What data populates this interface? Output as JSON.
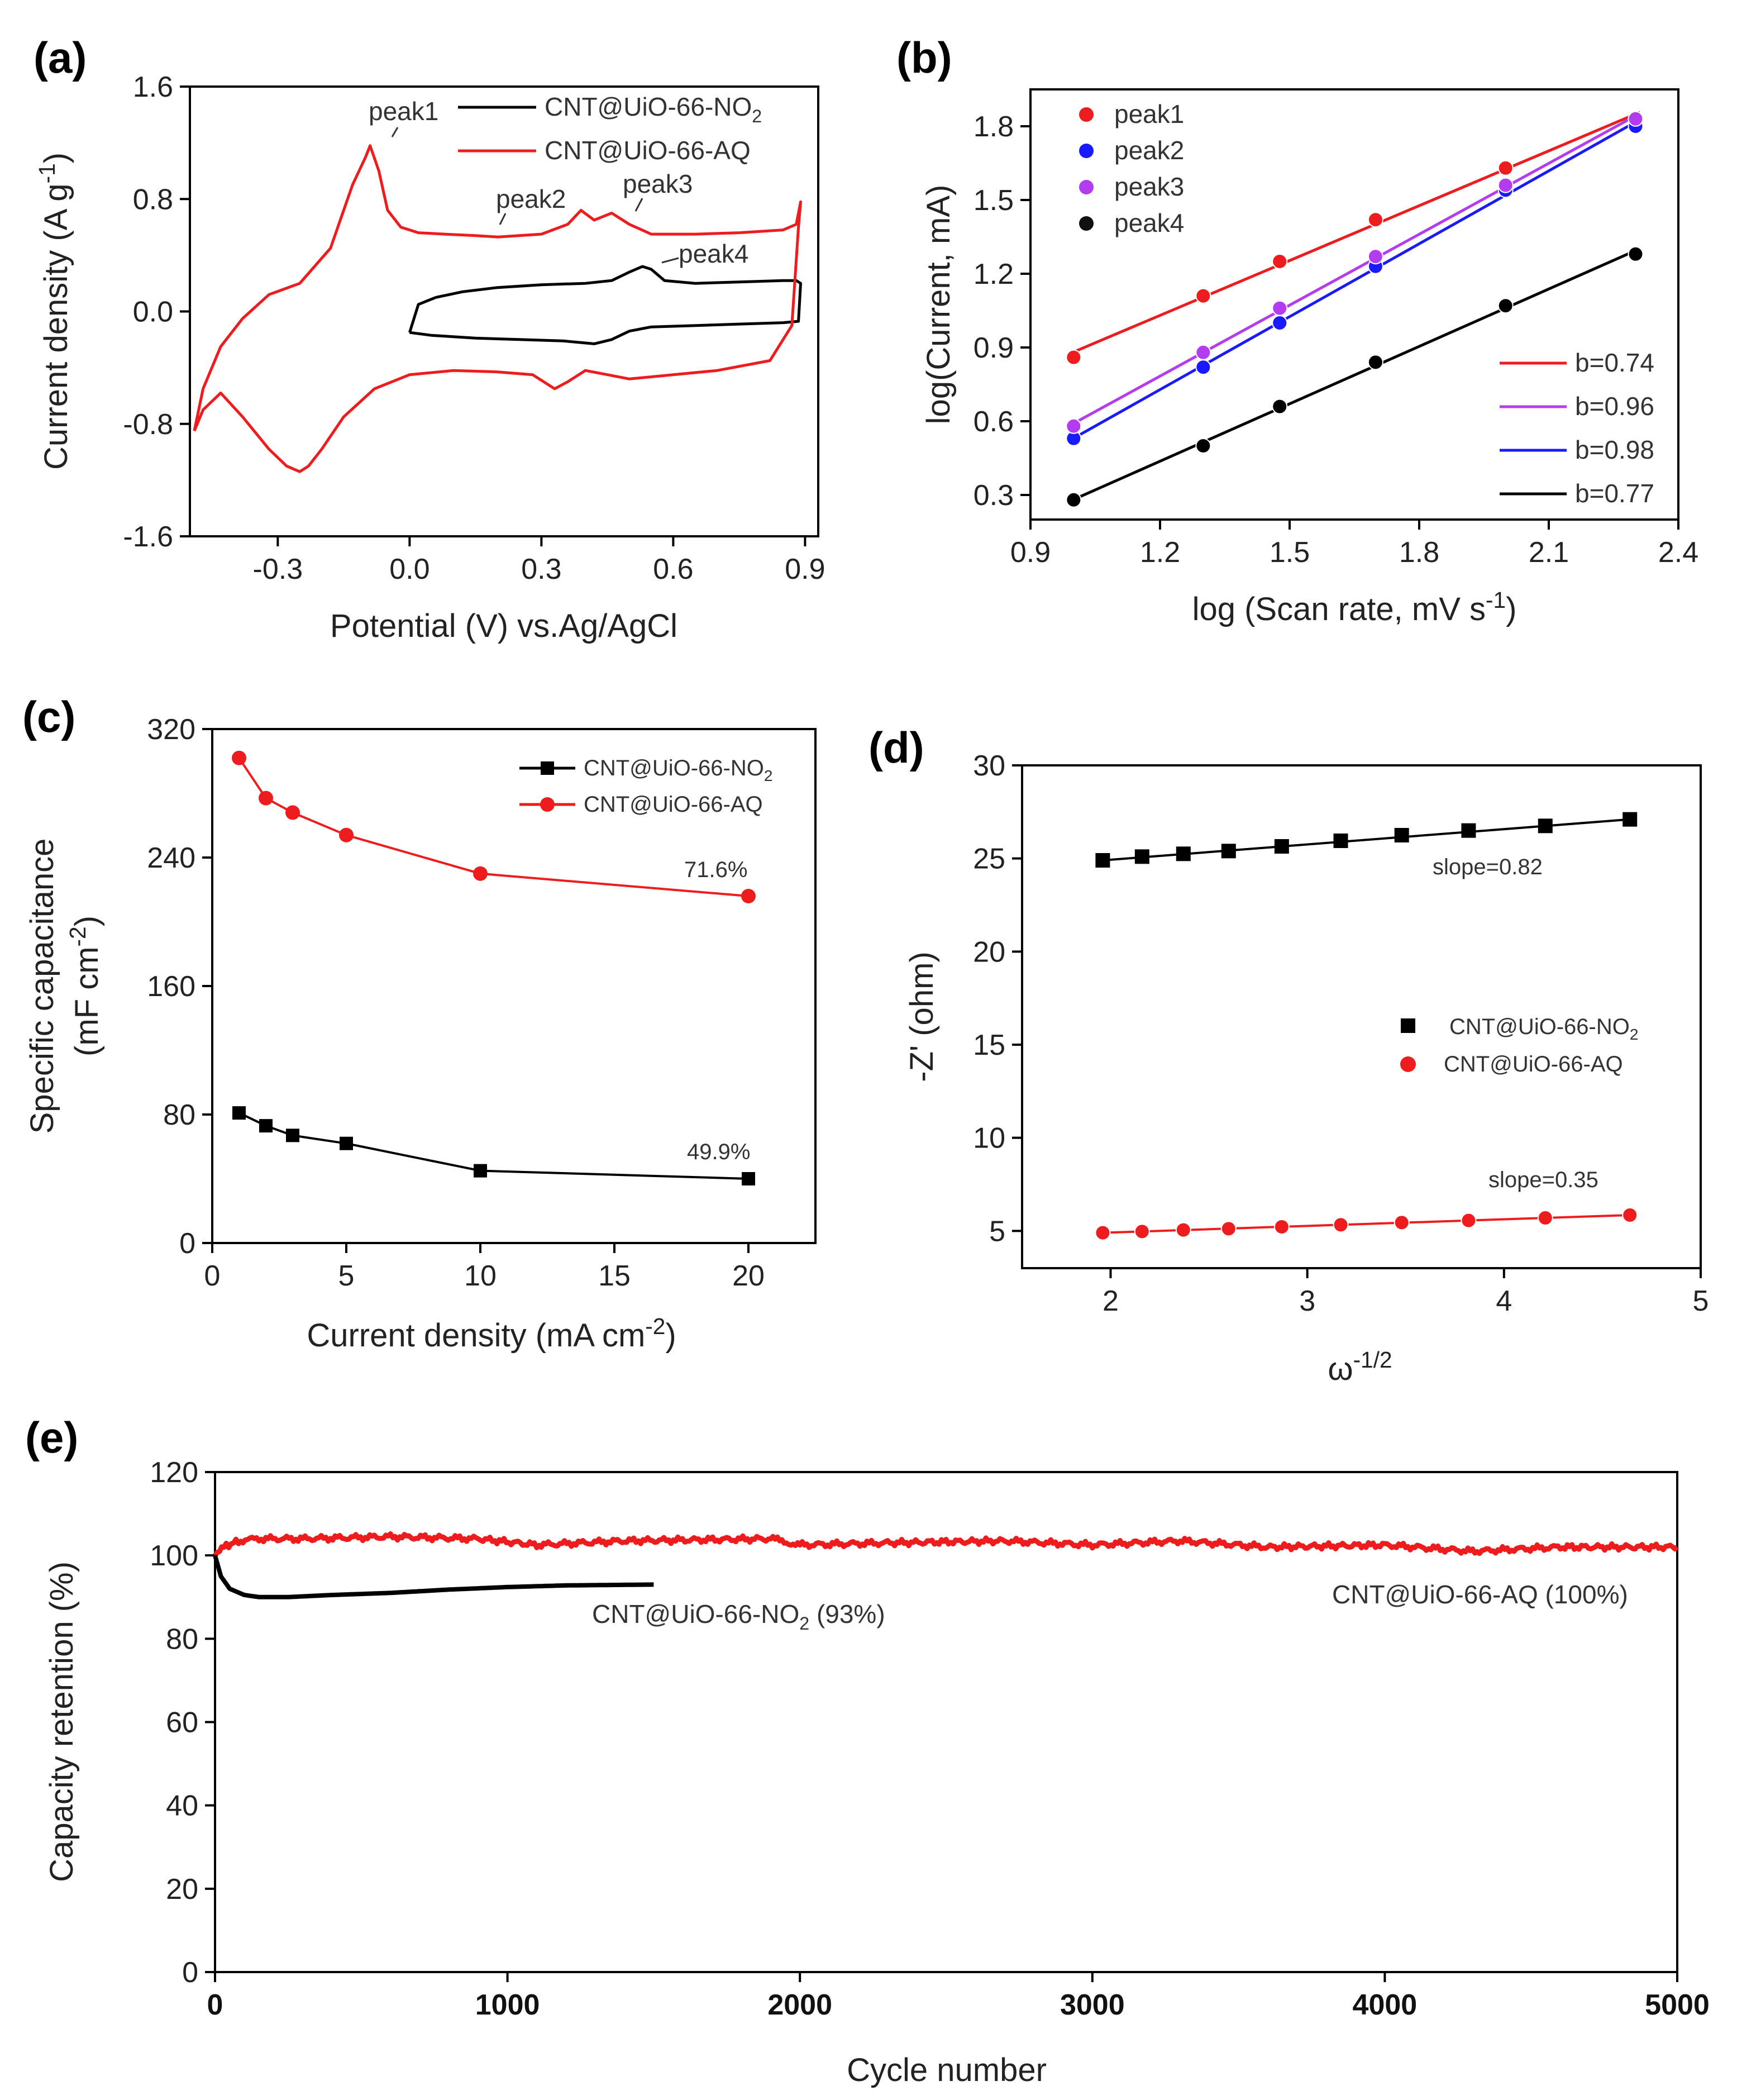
{
  "panel_labels": {
    "a": "(a)",
    "b": "(b)",
    "c": "(c)",
    "d": "(d)",
    "e": "(e)"
  },
  "chart_data": [
    {
      "id": "a",
      "type": "line",
      "title": "",
      "xlabel": "Potential (V) vs.Ag/AgCl",
      "ylabel": {
        "main": "Current density (A g",
        "sup": "-1",
        "end": ")"
      },
      "xlim": [
        -0.5,
        0.93
      ],
      "ylim": [
        -1.6,
        1.6
      ],
      "xticks": [
        -0.3,
        0.0,
        0.3,
        0.6,
        0.9
      ],
      "xtick_labels": [
        "-0.3",
        "0.0",
        "0.3",
        "0.6",
        "0.9"
      ],
      "yticks": [
        -1.6,
        -0.8,
        0.0,
        0.8,
        1.6
      ],
      "ytick_labels": [
        "-1.6",
        "-0.8",
        "0.0",
        "0.8",
        "1.6"
      ],
      "legend": [
        {
          "main": "CNT@UiO-66-NO",
          "sub": "2",
          "color": "#000000"
        },
        {
          "main": "CNT@UiO-66-AQ",
          "sub": "",
          "color": "#ee1c1c"
        }
      ],
      "series": [
        {
          "name": "CNT@UiO-66-NO2",
          "color": "#000000",
          "x": [
            0.0,
            0.02,
            0.06,
            0.12,
            0.2,
            0.3,
            0.4,
            0.46,
            0.5,
            0.53,
            0.55,
            0.58,
            0.65,
            0.75,
            0.85,
            0.88,
            0.89,
            0.885,
            0.85,
            0.75,
            0.65,
            0.55,
            0.5,
            0.46,
            0.42,
            0.35,
            0.25,
            0.15,
            0.05,
            0.0
          ],
          "y": [
            -0.15,
            0.05,
            0.1,
            0.14,
            0.17,
            0.19,
            0.2,
            0.22,
            0.28,
            0.32,
            0.3,
            0.22,
            0.2,
            0.21,
            0.22,
            0.22,
            0.2,
            -0.07,
            -0.08,
            -0.09,
            -0.1,
            -0.11,
            -0.14,
            -0.2,
            -0.23,
            -0.21,
            -0.2,
            -0.19,
            -0.17,
            -0.15
          ]
        },
        {
          "name": "CNT@UiO-66-AQ",
          "color": "#ee1c1c",
          "x": [
            -0.49,
            -0.47,
            -0.43,
            -0.38,
            -0.32,
            -0.25,
            -0.18,
            -0.13,
            -0.1,
            -0.09,
            -0.07,
            -0.05,
            -0.02,
            0.02,
            0.08,
            0.15,
            0.2,
            0.3,
            0.36,
            0.39,
            0.42,
            0.46,
            0.5,
            0.55,
            0.65,
            0.75,
            0.85,
            0.88,
            0.89,
            0.885,
            0.87,
            0.82,
            0.7,
            0.6,
            0.5,
            0.45,
            0.4,
            0.36,
            0.33,
            0.28,
            0.2,
            0.1,
            0.0,
            -0.08,
            -0.15,
            -0.2,
            -0.23,
            -0.25,
            -0.28,
            -0.32,
            -0.38,
            -0.43,
            -0.47,
            -0.49
          ],
          "y": [
            -0.85,
            -0.55,
            -0.25,
            -0.05,
            0.12,
            0.2,
            0.45,
            0.9,
            1.1,
            1.18,
            1.0,
            0.72,
            0.6,
            0.56,
            0.55,
            0.54,
            0.53,
            0.55,
            0.62,
            0.72,
            0.65,
            0.7,
            0.62,
            0.55,
            0.55,
            0.56,
            0.58,
            0.62,
            0.78,
            0.6,
            -0.1,
            -0.35,
            -0.42,
            -0.45,
            -0.48,
            -0.45,
            -0.42,
            -0.5,
            -0.55,
            -0.45,
            -0.43,
            -0.42,
            -0.45,
            -0.55,
            -0.75,
            -0.98,
            -1.1,
            -1.14,
            -1.1,
            -0.98,
            -0.75,
            -0.58,
            -0.7,
            -0.85
          ]
        }
      ],
      "annotations": [
        "peak1",
        "peak2",
        "peak3",
        "peak4"
      ]
    },
    {
      "id": "b",
      "type": "scatter",
      "xlabel": {
        "main": "log (Scan rate, mV s",
        "sup": "-1",
        "end": ")"
      },
      "ylabel": "log(Current, mA)",
      "xlim": [
        0.9,
        2.4
      ],
      "ylim": [
        0.2,
        1.95
      ],
      "xticks": [
        0.9,
        1.2,
        1.5,
        1.8,
        2.1,
        2.4
      ],
      "xtick_labels": [
        "0.9",
        "1.2",
        "1.5",
        "1.8",
        "2.1",
        "2.4"
      ],
      "yticks": [
        0.3,
        0.6,
        0.9,
        1.2,
        1.5,
        1.8
      ],
      "ytick_labels": [
        "0.3",
        "0.6",
        "0.9",
        "1.2",
        "1.5",
        "1.8"
      ],
      "x": [
        1.0,
        1.3,
        1.477,
        1.699,
        2.0,
        2.301
      ],
      "series": [
        {
          "name": "peak1",
          "color": "#ee1c1c",
          "values": [
            0.86,
            1.11,
            1.25,
            1.42,
            1.63,
            1.83
          ],
          "fit_label": "b=0.74"
        },
        {
          "name": "peak2",
          "color": "#1a1aff",
          "values": [
            0.53,
            0.82,
            1.0,
            1.23,
            1.54,
            1.8
          ],
          "fit_label": "b=0.98"
        },
        {
          "name": "peak3",
          "color": "#b43cf0",
          "values": [
            0.58,
            0.88,
            1.06,
            1.27,
            1.56,
            1.83
          ],
          "fit_label": "b=0.96"
        },
        {
          "name": "peak4",
          "color": "#000000",
          "values": [
            0.28,
            0.5,
            0.66,
            0.84,
            1.07,
            1.28
          ],
          "fit_label": "b=0.77"
        }
      ],
      "fit_legend": [
        {
          "label": "b=0.74",
          "color": "#ee1c1c"
        },
        {
          "label": "b=0.96",
          "color": "#b43cf0"
        },
        {
          "label": "b=0.98",
          "color": "#1a1aff"
        },
        {
          "label": "b=0.77",
          "color": "#000000"
        }
      ]
    },
    {
      "id": "c",
      "type": "line",
      "xlabel": {
        "main": "Current density (mA cm",
        "sup": "-2",
        "end": ")"
      },
      "ylabel": {
        "line1": "Specific capacitance",
        "line2_main": "(mF cm",
        "line2_sup": "-2",
        "line2_end": ")"
      },
      "xlim": [
        0,
        22.5
      ],
      "ylim": [
        0,
        320
      ],
      "xticks": [
        0,
        5,
        10,
        15,
        20
      ],
      "xtick_labels": [
        "0",
        "5",
        "10",
        "15",
        "20"
      ],
      "yticks": [
        0,
        80,
        160,
        240,
        320
      ],
      "ytick_labels": [
        "0",
        "80",
        "160",
        "240",
        "320"
      ],
      "x": [
        1,
        2,
        3,
        5,
        10,
        20
      ],
      "series": [
        {
          "name": "CNT@UiO-66-NO2",
          "legend_main": "CNT@UiO-66-NO",
          "legend_sub": "2",
          "color": "#000000",
          "marker": "square",
          "values": [
            81,
            73,
            67,
            62,
            45,
            40
          ]
        },
        {
          "name": "CNT@UiO-66-AQ",
          "legend_main": "CNT@UiO-66-AQ",
          "legend_sub": "",
          "color": "#ee1c1c",
          "marker": "circle",
          "values": [
            302,
            277,
            268,
            254,
            230,
            216
          ]
        }
      ],
      "annotations": [
        "71.6%",
        "49.9%"
      ]
    },
    {
      "id": "d",
      "type": "scatter",
      "xlabel": {
        "main": "ω",
        "sup": "-1/2",
        "end": ""
      },
      "ylabel": "-Z' (ohm)",
      "xlim": [
        1.55,
        5.0
      ],
      "ylim": [
        3,
        30
      ],
      "xticks": [
        2,
        3,
        4,
        5
      ],
      "xtick_labels": [
        "2",
        "3",
        "4",
        "5"
      ],
      "yticks": [
        5,
        10,
        15,
        20,
        25,
        30
      ],
      "ytick_labels": [
        "5",
        "10",
        "15",
        "20",
        "25",
        "30"
      ],
      "series": [
        {
          "name": "CNT@UiO-66-NO2",
          "legend_main": "CNT@UiO-66-NO",
          "legend_sub": "2",
          "color": "#000000",
          "marker": "square",
          "x": [
            1.96,
            2.16,
            2.37,
            2.6,
            2.87,
            3.17,
            3.48,
            3.82,
            4.21,
            4.64
          ],
          "values": [
            24.9,
            25.1,
            25.25,
            25.4,
            25.65,
            25.95,
            26.25,
            26.5,
            26.75,
            27.1
          ],
          "annotation": "slope=0.82"
        },
        {
          "name": "CNT@UiO-66-AQ",
          "legend_main": "CNT@UiO-66-AQ",
          "legend_sub": "",
          "color": "#ee1c1c",
          "marker": "circle",
          "x": [
            1.96,
            2.16,
            2.37,
            2.6,
            2.87,
            3.17,
            3.48,
            3.82,
            4.21,
            4.64
          ],
          "values": [
            4.9,
            4.97,
            5.05,
            5.12,
            5.22,
            5.33,
            5.45,
            5.56,
            5.7,
            5.85
          ],
          "annotation": "slope=0.35"
        }
      ]
    },
    {
      "id": "e",
      "type": "line",
      "xlabel": "Cycle number",
      "ylabel": "Capacity retention (%)",
      "xlim": [
        0,
        5000
      ],
      "ylim": [
        0,
        120
      ],
      "xticks": [
        0,
        1000,
        2000,
        3000,
        4000,
        5000
      ],
      "xtick_labels": [
        "0",
        "1000",
        "2000",
        "3000",
        "4000",
        "5000"
      ],
      "yticks": [
        0,
        20,
        40,
        60,
        80,
        100,
        120
      ],
      "ytick_labels": [
        "0",
        "20",
        "40",
        "60",
        "80",
        "100",
        "120"
      ],
      "series": [
        {
          "name": "CNT@UiO-66-AQ (100%)",
          "label_main": "CNT@UiO-66-AQ (100%)",
          "color": "#ee1c1c",
          "x": [
            0,
            30,
            80,
            150,
            300,
            600,
            900,
            1100,
            1400,
            1900,
            2000,
            2300,
            2700,
            3000,
            3300,
            3600,
            4000,
            4300,
            4600,
            5000
          ],
          "values": [
            100,
            102,
            103.5,
            104,
            104,
            104.5,
            104,
            102.5,
            103.5,
            104,
            102.5,
            103,
            103.5,
            102.5,
            103.5,
            102,
            102.5,
            101,
            102,
            102
          ]
        },
        {
          "name": "CNT@UiO-66-NO2 (93%)",
          "label_main": "CNT@UiO-66-NO",
          "label_sub": "2",
          "label_end": " (93%)",
          "color": "#000000",
          "x": [
            0,
            20,
            50,
            100,
            150,
            250,
            400,
            600,
            800,
            1000,
            1200,
            1500
          ],
          "values": [
            100,
            95,
            92,
            90.5,
            90,
            90,
            90.5,
            91,
            91.8,
            92.4,
            92.8,
            93
          ]
        }
      ]
    }
  ]
}
